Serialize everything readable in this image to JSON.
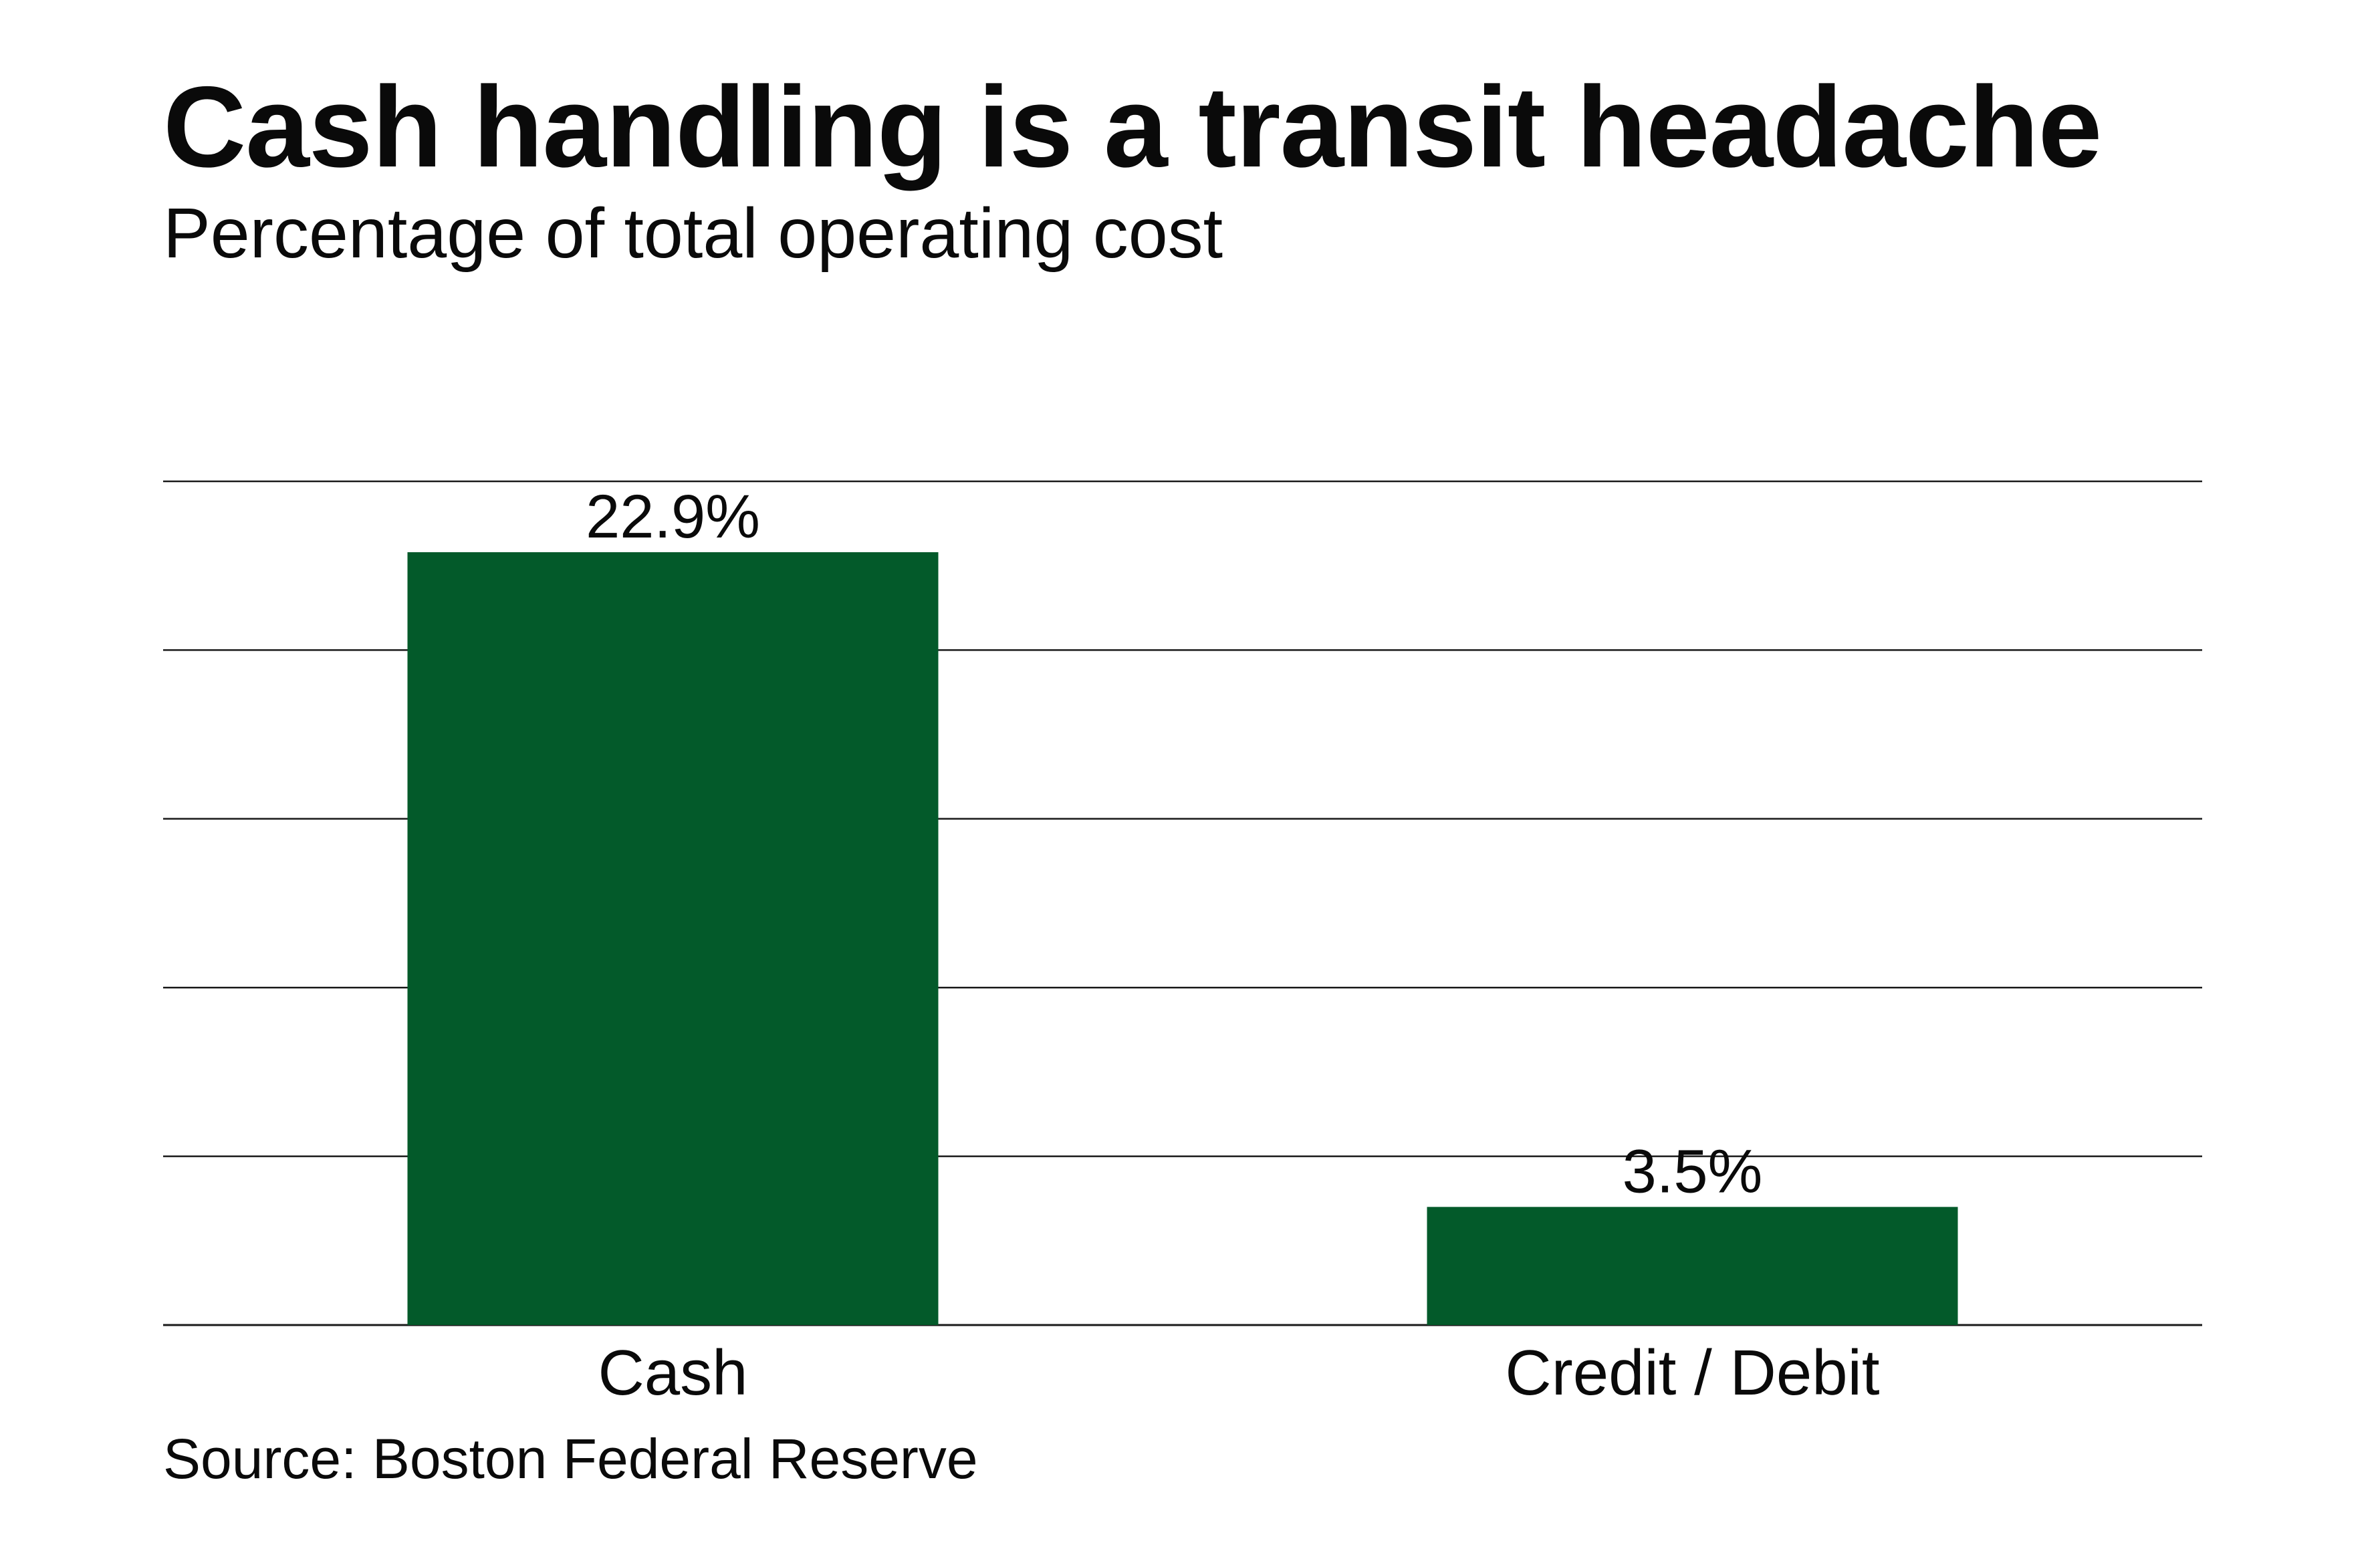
{
  "chart_data": {
    "type": "bar",
    "title": "Cash handling is a transit headache",
    "subtitle": "Percentage of total operating cost",
    "categories": [
      "Cash",
      "Credit / Debit"
    ],
    "values": [
      22.9,
      3.5
    ],
    "data_labels": [
      "22.9%",
      "3.5%"
    ],
    "ylim": [
      0,
      25
    ],
    "grid": true,
    "legend": "none",
    "bar_color": "#035a2a",
    "source": "Source: Boston Federal Reserve"
  }
}
